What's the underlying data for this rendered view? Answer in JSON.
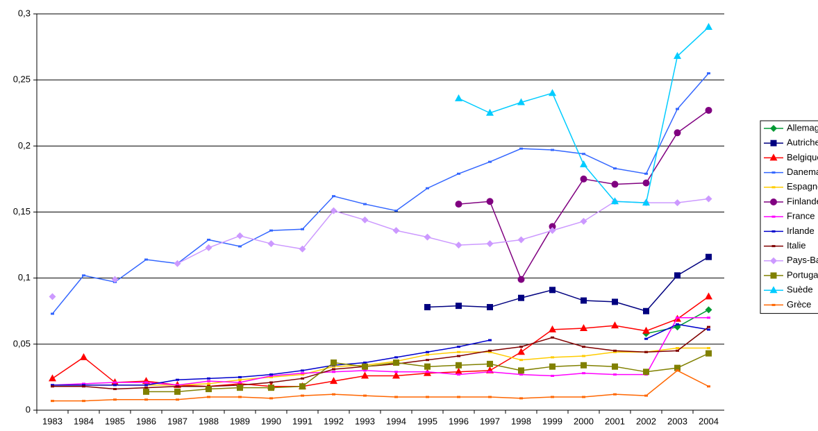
{
  "chart_data": {
    "type": "line",
    "categories": [
      "1983",
      "1984",
      "1985",
      "1986",
      "1987",
      "1988",
      "1989",
      "1990",
      "1991",
      "1992",
      "1993",
      "1994",
      "1995",
      "1996",
      "1997",
      "1998",
      "1999",
      "2000",
      "2001",
      "2002",
      "2003",
      "2004"
    ],
    "ylim": [
      0,
      0.3
    ],
    "yticks": [
      0,
      {
        "value": 0.05,
        "label": "0,05"
      },
      {
        "value": 0.1,
        "label": "0,1"
      },
      {
        "value": 0.15,
        "label": "0,15"
      },
      {
        "value": 0.2,
        "label": "0,2"
      },
      {
        "value": 0.25,
        "label": "0,25"
      },
      {
        "value": 0.3,
        "label": "0,3"
      }
    ],
    "grid": true,
    "legend": "right",
    "series": [
      {
        "name": "Allemagne",
        "color": "#009933",
        "marker": "diamond",
        "values": [
          null,
          null,
          null,
          null,
          null,
          null,
          null,
          null,
          null,
          null,
          null,
          null,
          null,
          null,
          null,
          null,
          null,
          null,
          null,
          0.058,
          0.063,
          0.076
        ]
      },
      {
        "name": "Autriche",
        "color": "#000080",
        "marker": "square",
        "values": [
          null,
          null,
          null,
          null,
          null,
          null,
          null,
          null,
          null,
          null,
          null,
          null,
          0.078,
          0.079,
          0.078,
          0.085,
          0.091,
          0.083,
          0.082,
          0.075,
          0.102,
          0.116
        ]
      },
      {
        "name": "Belgique",
        "color": "#ff0000",
        "marker": "triangle",
        "values": [
          0.024,
          0.04,
          0.021,
          0.022,
          0.019,
          0.018,
          0.02,
          0.018,
          0.018,
          0.022,
          0.026,
          0.026,
          0.028,
          0.029,
          0.03,
          0.044,
          0.061,
          0.062,
          0.064,
          0.06,
          0.069,
          0.086
        ]
      },
      {
        "name": "Danemark",
        "color": "#3366ff",
        "marker": "dash",
        "values": [
          0.073,
          0.102,
          0.097,
          0.114,
          0.111,
          0.129,
          0.124,
          0.136,
          0.137,
          0.162,
          0.156,
          0.151,
          0.168,
          0.179,
          0.188,
          0.198,
          0.197,
          0.194,
          0.183,
          0.179,
          0.228,
          0.255
        ]
      },
      {
        "name": "Espagne",
        "color": "#ffcc00",
        "marker": "dash",
        "values": [
          0.019,
          0.019,
          0.019,
          0.019,
          0.019,
          0.02,
          0.023,
          0.025,
          0.027,
          0.033,
          0.034,
          0.037,
          0.042,
          0.044,
          0.044,
          0.038,
          0.04,
          0.041,
          0.044,
          0.044,
          0.047,
          0.047
        ]
      },
      {
        "name": "Finlande",
        "color": "#800080",
        "marker": "circle",
        "values": [
          null,
          null,
          null,
          null,
          null,
          null,
          null,
          null,
          null,
          null,
          null,
          null,
          null,
          0.156,
          0.158,
          0.099,
          0.139,
          0.175,
          0.171,
          0.172,
          0.21,
          0.227
        ]
      },
      {
        "name": "France",
        "color": "#ff00ff",
        "marker": "dash",
        "values": [
          0.019,
          0.02,
          0.021,
          0.021,
          0.019,
          0.022,
          0.021,
          0.026,
          0.028,
          0.029,
          0.03,
          0.029,
          0.029,
          0.027,
          0.029,
          0.027,
          0.026,
          0.028,
          0.027,
          0.027,
          0.07,
          0.07
        ]
      },
      {
        "name": "Irlande",
        "color": "#0000cc",
        "marker": "dash",
        "values": [
          0.019,
          0.019,
          0.019,
          0.019,
          0.023,
          0.024,
          0.025,
          0.027,
          0.03,
          0.034,
          0.036,
          0.04,
          0.044,
          0.048,
          0.053,
          null,
          null,
          null,
          null,
          0.054,
          0.065,
          0.061
        ]
      },
      {
        "name": "Italie",
        "color": "#800000",
        "marker": "dash",
        "values": [
          0.018,
          0.018,
          0.016,
          0.017,
          0.018,
          0.018,
          0.019,
          0.021,
          0.024,
          0.031,
          0.033,
          0.035,
          0.038,
          0.041,
          0.045,
          0.048,
          0.055,
          0.048,
          0.045,
          0.044,
          0.045,
          0.063
        ]
      },
      {
        "name": "Pays-Bas",
        "color": "#cc99ff",
        "marker": "diamond",
        "values": [
          0.086,
          null,
          0.099,
          null,
          0.111,
          0.123,
          0.132,
          0.126,
          0.122,
          0.151,
          0.144,
          0.136,
          0.131,
          0.125,
          0.126,
          0.129,
          0.136,
          0.143,
          0.158,
          0.157,
          0.157,
          0.16
        ]
      },
      {
        "name": "Portugal",
        "color": "#808000",
        "marker": "square",
        "values": [
          null,
          null,
          null,
          0.014,
          0.014,
          0.016,
          0.017,
          0.017,
          0.018,
          0.036,
          0.033,
          0.036,
          0.033,
          0.034,
          0.035,
          0.03,
          0.033,
          0.034,
          0.033,
          0.029,
          0.032,
          0.043
        ]
      },
      {
        "name": "Suède",
        "color": "#00ccff",
        "marker": "triangle",
        "values": [
          null,
          null,
          null,
          null,
          null,
          null,
          null,
          null,
          null,
          null,
          null,
          null,
          null,
          0.236,
          0.225,
          0.233,
          0.24,
          0.186,
          0.158,
          0.157,
          0.268,
          0.29
        ]
      },
      {
        "name": "Grèce",
        "color": "#ff6600",
        "marker": "dash",
        "values": [
          0.007,
          0.007,
          0.008,
          0.008,
          0.008,
          0.01,
          0.01,
          0.009,
          0.011,
          0.012,
          0.011,
          0.01,
          0.01,
          0.01,
          0.01,
          0.009,
          0.01,
          0.01,
          0.012,
          0.011,
          0.03,
          0.018
        ]
      }
    ]
  }
}
